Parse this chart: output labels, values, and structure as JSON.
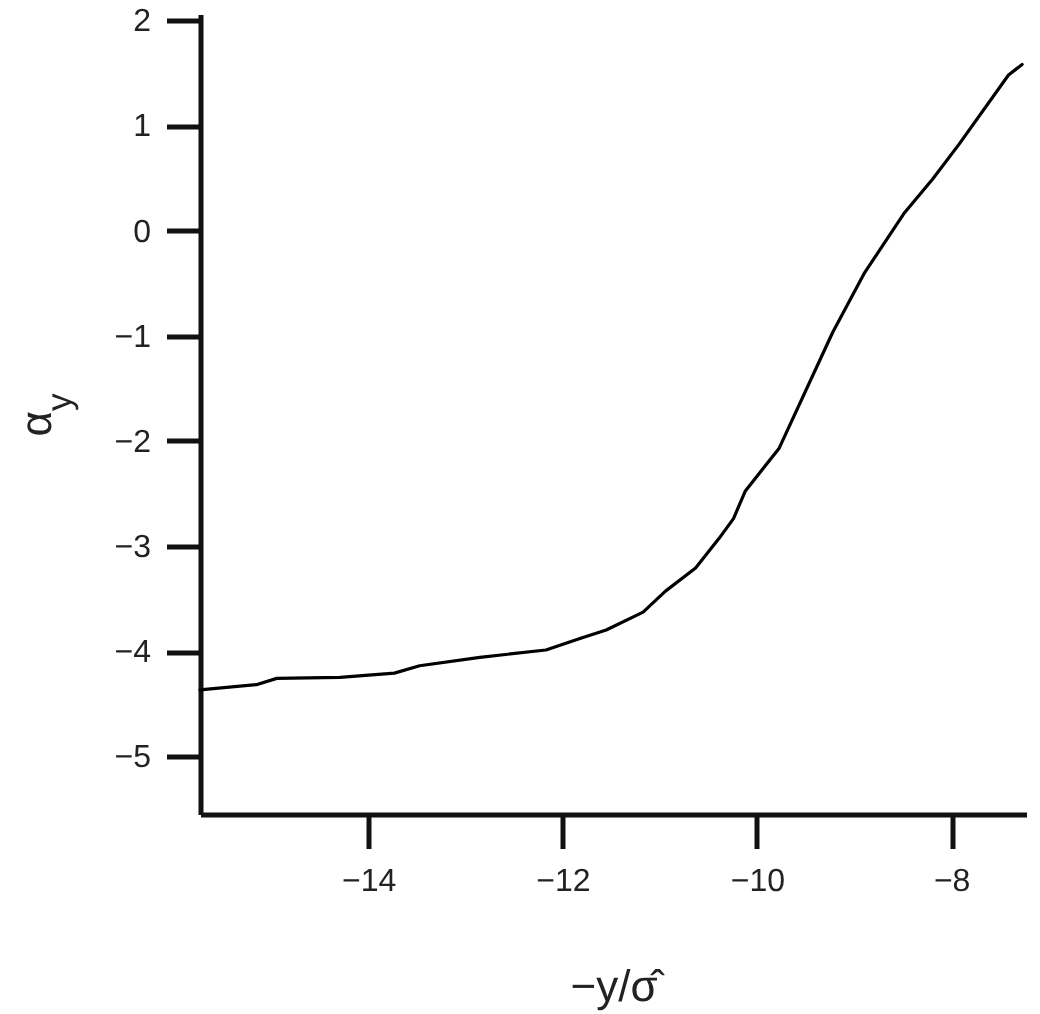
{
  "chart_data": {
    "type": "line",
    "xlabel": "−y/σ̂",
    "ylabel": "α$_{y}$",
    "x": [
      -15.73,
      -15.15,
      -14.94,
      -14.29,
      -13.73,
      -13.47,
      -12.85,
      -12.17,
      -11.82,
      -11.55,
      -11.17,
      -10.94,
      -10.63,
      -10.39,
      -10.24,
      -10.12,
      -9.77,
      -9.22,
      -8.89,
      -8.48,
      -8.19,
      -7.92,
      -7.41,
      -7.27
    ],
    "series": [
      {
        "color": "#000000",
        "values": [
          -4.37,
          -4.32,
          -4.26,
          -4.25,
          -4.21,
          -4.14,
          -4.06,
          -3.99,
          -3.88,
          -3.8,
          -3.63,
          -3.43,
          -3.21,
          -2.93,
          -2.74,
          -2.48,
          -2.07,
          -0.97,
          -0.4,
          0.17,
          0.49,
          0.82,
          1.48,
          1.58
        ]
      }
    ],
    "xlim": [
      -15.73,
      -7.23
    ],
    "ylim": [
      -5.55,
      2.06
    ],
    "xticks": [
      -14,
      -12,
      -10,
      -8
    ],
    "yticks": [
      -5,
      -4,
      -3,
      -2,
      -1,
      0,
      1,
      2
    ],
    "marker": "none",
    "line_style": "solid"
  }
}
